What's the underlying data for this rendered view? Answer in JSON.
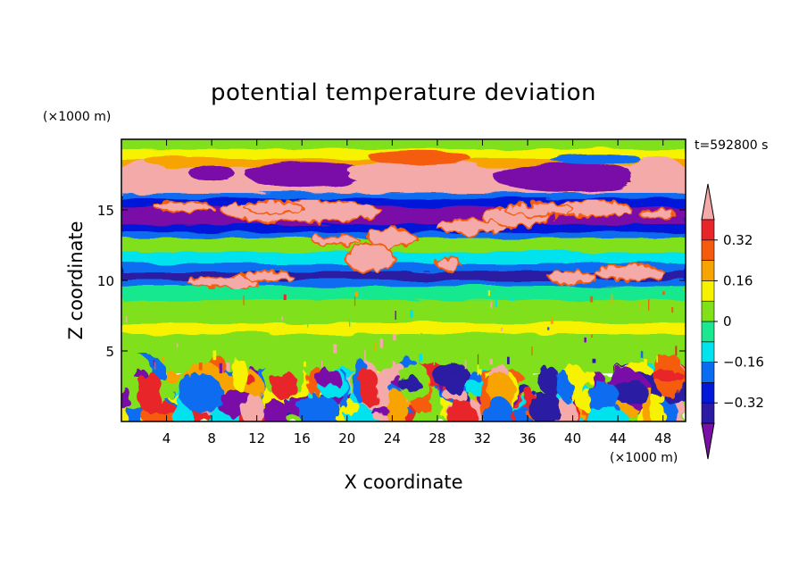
{
  "chart_data": {
    "type": "heatmap",
    "title": "potential temperature deviation",
    "xlabel": "X coordinate",
    "ylabel": "Z coordinate",
    "x_unit": "(×1000 m)",
    "y_unit": "(×1000 m)",
    "time_label": "t=592800 s",
    "x_range": [
      0,
      50
    ],
    "y_range": [
      0,
      20
    ],
    "x_ticks": [
      4,
      8,
      12,
      16,
      20,
      24,
      28,
      32,
      36,
      40,
      44,
      48
    ],
    "y_ticks": [
      5,
      10,
      15
    ],
    "colorbar": {
      "levels": [
        -0.4,
        -0.32,
        -0.24,
        -0.16,
        -0.08,
        0,
        0.08,
        0.16,
        0.24,
        0.32,
        0.4
      ],
      "labels": [
        {
          "value": 0.32,
          "text": "0.32"
        },
        {
          "value": 0.16,
          "text": "0.16"
        },
        {
          "value": 0,
          "text": "0"
        },
        {
          "value": -0.16,
          "text": "−0.16"
        },
        {
          "value": -0.32,
          "text": "−0.32"
        }
      ],
      "colors": [
        "#7a10a8",
        "#2b1aa3",
        "#0018d8",
        "#0a6cf0",
        "#00e2ee",
        "#19e890",
        "#80e01a",
        "#f6f200",
        "#f8a400",
        "#f55b0c",
        "#e8262a",
        "#f3aaa8"
      ],
      "extend": "both"
    },
    "layers": [
      {
        "z": [
          0,
          3.4
        ],
        "level": "mixed",
        "description": "turbulent boundary layer"
      },
      {
        "z": [
          3.4,
          9.6
        ],
        "level": 0.02
      },
      {
        "z": [
          9.6,
          11.2
        ],
        "level": -0.3
      },
      {
        "z": [
          11.2,
          13.4
        ],
        "level": 0.0
      },
      {
        "z": [
          13.4,
          16.0
        ],
        "level": -0.38
      },
      {
        "z": [
          16.0,
          18.0
        ],
        "level": 0.42
      },
      {
        "z": [
          18.0,
          20.0
        ],
        "level": 0.04
      }
    ]
  }
}
